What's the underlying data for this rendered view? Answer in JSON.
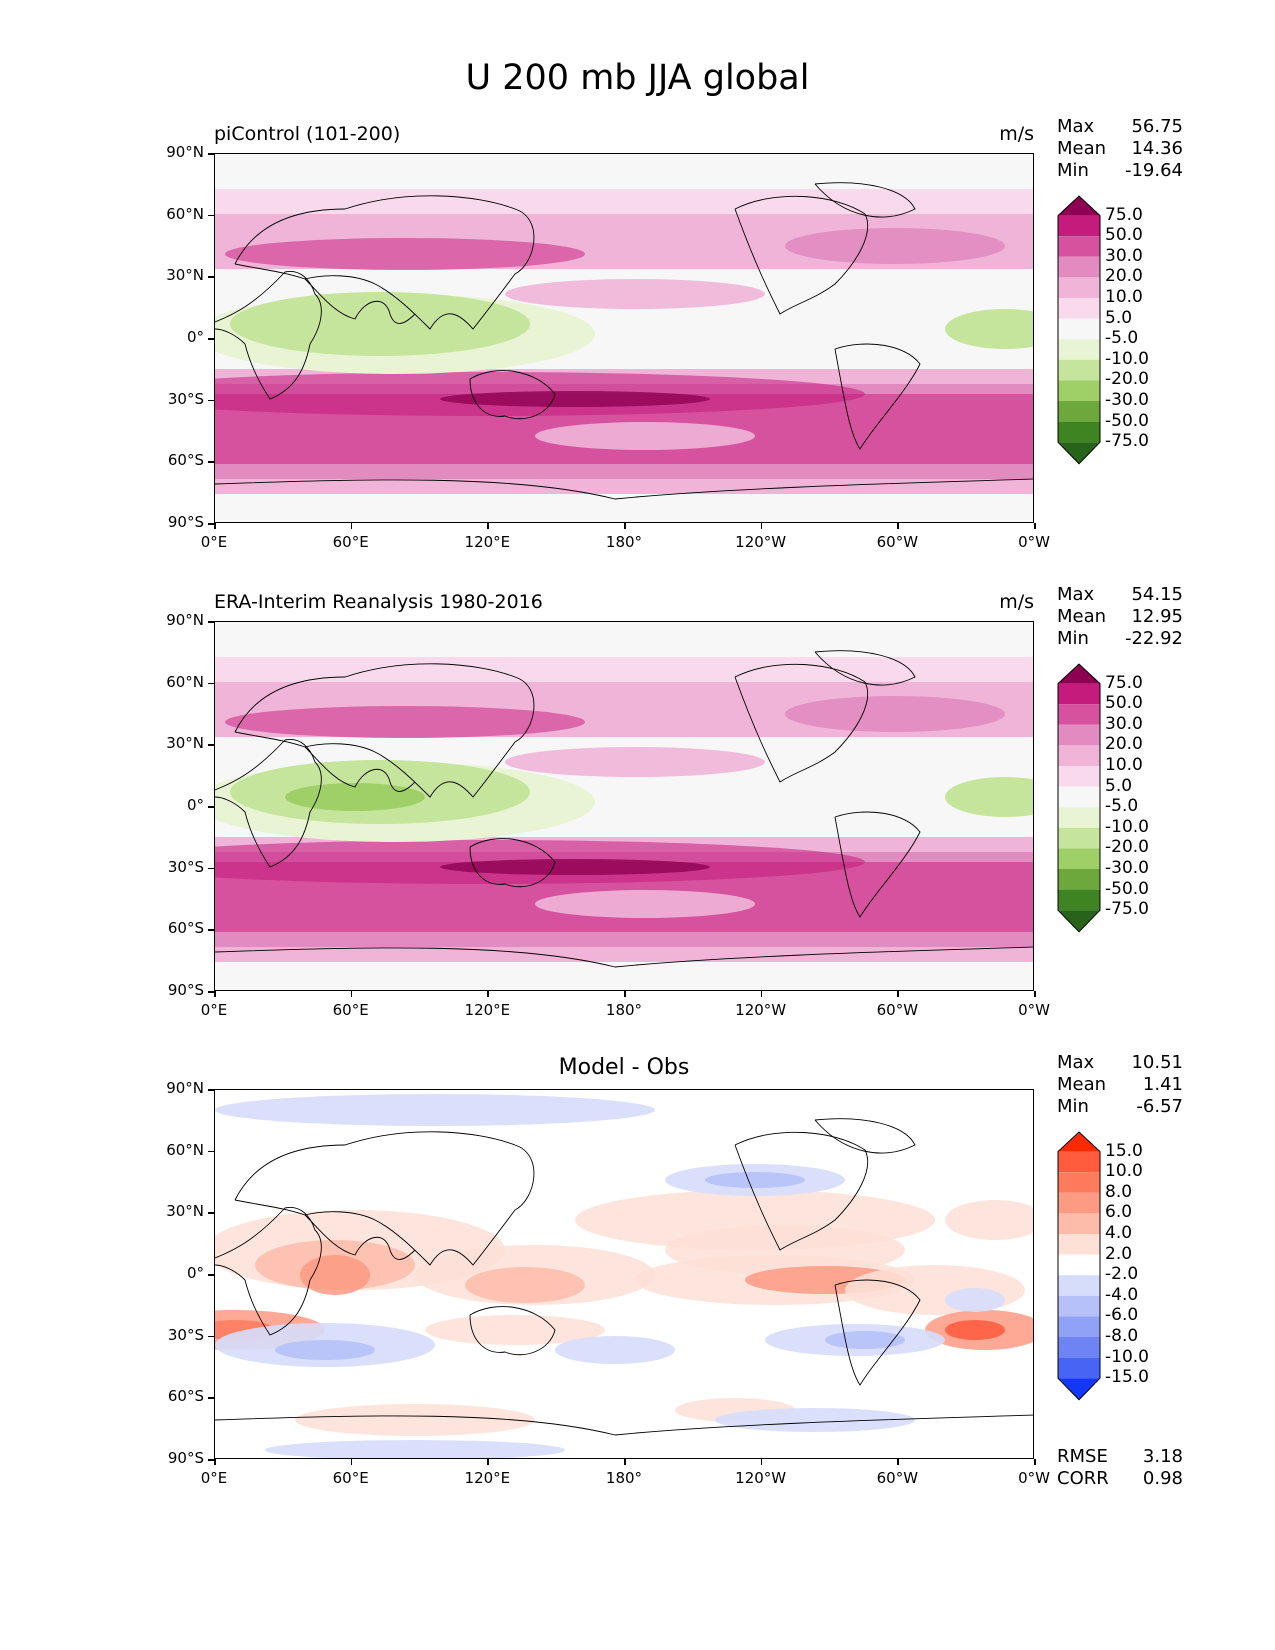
{
  "figure": {
    "title": "U 200 mb JJA global"
  },
  "axes": {
    "y_ticks": [
      "90°N",
      "60°N",
      "30°N",
      "0°",
      "30°S",
      "60°S",
      "90°S"
    ],
    "x_ticks": [
      "0°E",
      "60°E",
      "120°E",
      "180°",
      "120°W",
      "60°W",
      "0°W"
    ]
  },
  "panels": [
    {
      "id": "model",
      "subtitle": "piControl (101-200)",
      "units": "m/s",
      "stats": [
        {
          "label": "Max",
          "value": "56.75"
        },
        {
          "label": "Mean",
          "value": "14.36"
        },
        {
          "label": "Min",
          "value": "-19.64"
        }
      ]
    },
    {
      "id": "obs",
      "subtitle": "ERA-Interim Reanalysis 1980-2016",
      "units": "m/s",
      "stats": [
        {
          "label": "Max",
          "value": "54.15"
        },
        {
          "label": "Mean",
          "value": "12.95"
        },
        {
          "label": "Min",
          "value": "-22.92"
        }
      ]
    },
    {
      "id": "diff",
      "center_title": "Model - Obs",
      "stats": [
        {
          "label": "Max",
          "value": "10.51"
        },
        {
          "label": "Mean",
          "value": "1.41"
        },
        {
          "label": "Min",
          "value": "-6.57"
        }
      ],
      "metrics": [
        {
          "label": "RMSE",
          "value": "3.18"
        },
        {
          "label": "CORR",
          "value": "0.98"
        }
      ]
    }
  ],
  "colorbars": {
    "field": {
      "labels": [
        "75.0",
        "50.0",
        "30.0",
        "20.0",
        "10.0",
        "5.0",
        "-5.0",
        "-10.0",
        "-20.0",
        "-30.0",
        "-50.0",
        "-75.0"
      ],
      "colors": [
        "#8e0152",
        "#c51b7d",
        "#d6529e",
        "#e28bc1",
        "#efb4d8",
        "#f9daec",
        "#f7f7f7",
        "#e8f4d4",
        "#c6e59c",
        "#9fd068",
        "#6ca83c",
        "#3e8422",
        "#276419"
      ]
    },
    "diff": {
      "labels": [
        "15.0",
        "10.0",
        "8.0",
        "6.0",
        "4.0",
        "2.0",
        "-2.0",
        "-4.0",
        "-6.0",
        "-8.0",
        "-10.0",
        "-15.0"
      ],
      "colors": [
        "#ff2a00",
        "#ff5b3c",
        "#ff7b5e",
        "#fd9a82",
        "#fdbcaa",
        "#fde1d7",
        "#ffffff",
        "#d6ddfb",
        "#b5c1f8",
        "#8fa2f6",
        "#6e84f4",
        "#4864f5",
        "#1436f7"
      ]
    }
  }
}
